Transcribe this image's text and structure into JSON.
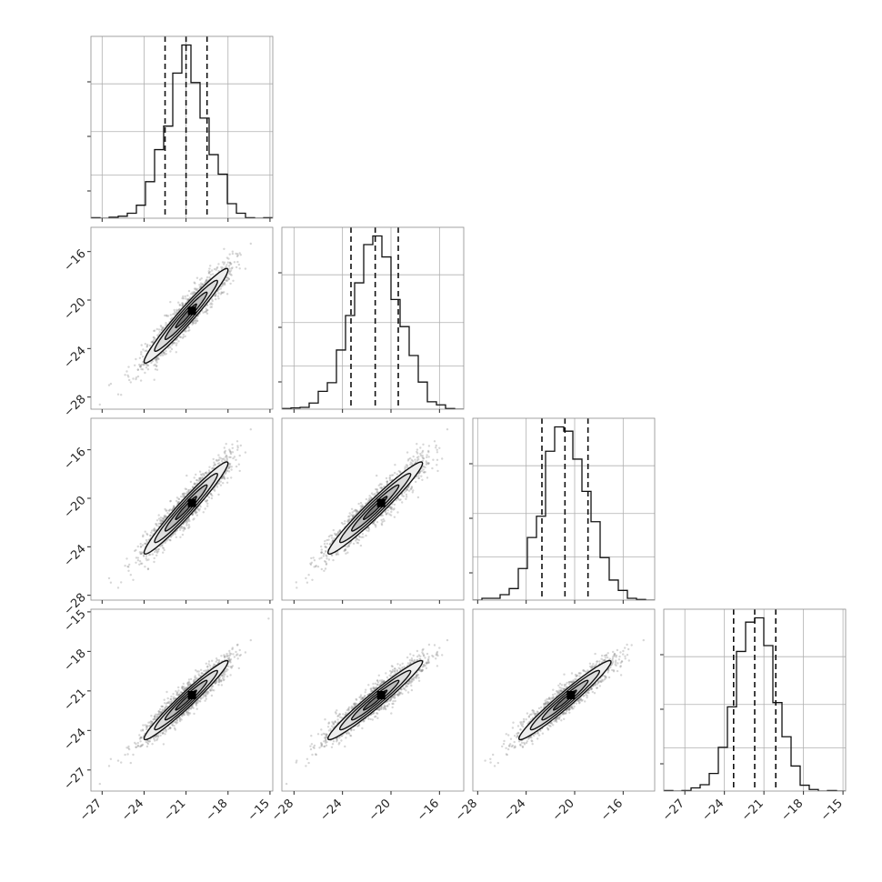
{
  "chart_data": {
    "type": "corner",
    "parameters": [
      {
        "mean": -21.0,
        "std": 1.5,
        "range": [
          -27.8,
          -14.8
        ],
        "ticks": [
          -27,
          -24,
          -21,
          -18,
          -15
        ],
        "quantiles": [
          -22.5,
          -21.0,
          -19.5
        ]
      },
      {
        "mean": -21.3,
        "std": 1.95,
        "range": [
          -29.0,
          -14.0
        ],
        "ticks": [
          -28,
          -24,
          -20,
          -16
        ],
        "quantiles": [
          -23.3,
          -21.3,
          -19.4
        ]
      },
      {
        "mean": -20.8,
        "std": 1.9,
        "range": [
          -28.4,
          -13.4
        ],
        "ticks": [
          -28,
          -24,
          -20,
          -16
        ],
        "quantiles": [
          -22.7,
          -20.8,
          -18.9
        ]
      },
      {
        "mean": -21.7,
        "std": 1.5,
        "range": [
          -28.6,
          -14.8
        ],
        "ticks": [
          -27,
          -24,
          -21,
          -18,
          -15
        ],
        "quantiles": [
          -23.3,
          -21.7,
          -20.1
        ]
      }
    ],
    "correlation": 0.97,
    "histogram_bins": 20,
    "contour_levels": [
      0.5,
      1.0,
      1.5,
      2.0
    ],
    "quantile_line_style": "dashed",
    "grid": true,
    "colors": {
      "samples": "#8a8a8a",
      "hist": "#111111",
      "contour_fill_outer": "#eeeeee",
      "contour_fill_mid": "#bdbdbd",
      "contour_fill_inner": "#7f7f7f",
      "peak": "#000000"
    }
  }
}
